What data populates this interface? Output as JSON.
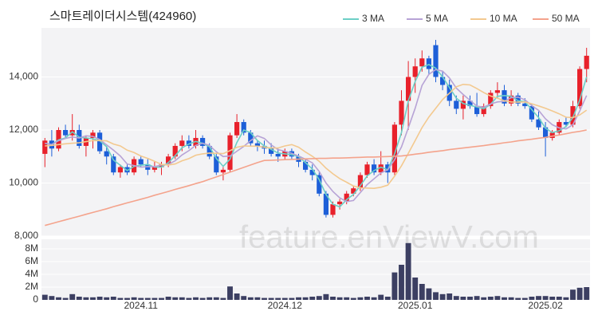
{
  "chart_data": {
    "type": "candlestick",
    "title": "스마트레이더시스템(424960)",
    "watermark": "feature.enViewV.com",
    "categories": [
      null,
      null,
      null,
      null,
      null,
      null,
      null,
      null,
      null,
      null,
      null,
      null,
      null,
      null,
      "2024.11",
      null,
      null,
      null,
      null,
      null,
      null,
      null,
      null,
      null,
      null,
      null,
      null,
      null,
      null,
      null,
      null,
      null,
      null,
      null,
      null,
      "2024.12",
      null,
      null,
      null,
      null,
      null,
      null,
      null,
      null,
      null,
      null,
      null,
      null,
      null,
      null,
      null,
      null,
      null,
      null,
      "2025.01",
      null,
      null,
      null,
      null,
      null,
      null,
      null,
      null,
      null,
      null,
      null,
      null,
      null,
      null,
      null,
      null,
      null,
      null,
      "2025.02",
      null,
      null,
      null,
      null,
      null,
      null
    ],
    "open": [
      11100,
      11600,
      11300,
      12000,
      11800,
      12000,
      11400,
      11700,
      11900,
      11200,
      11000,
      10400,
      10600,
      10400,
      10900,
      10700,
      10500,
      10600,
      10700,
      11000,
      11400,
      11600,
      11400,
      11700,
      11400,
      11000,
      10400,
      10500,
      11800,
      12300,
      11900,
      11500,
      11400,
      11300,
      11100,
      11000,
      11200,
      11000,
      10800,
      10500,
      10300,
      9600,
      8800,
      9200,
      9300,
      9600,
      9800,
      10300,
      10700,
      10400,
      10700,
      10400,
      12200,
      13100,
      14000,
      14400,
      14700,
      15200,
      14000,
      13700,
      13100,
      12800,
      13100,
      12900,
      12600,
      12900,
      13400,
      13500,
      13000,
      13300,
      13000,
      12900,
      12400,
      12100,
      11700,
      11900,
      12300,
      12200,
      12900,
      14300
    ],
    "high": [
      11700,
      12000,
      12100,
      12200,
      12600,
      12200,
      11800,
      12000,
      12000,
      11400,
      11100,
      10700,
      10700,
      11000,
      11000,
      10900,
      10800,
      10800,
      11100,
      11500,
      11800,
      11800,
      12000,
      11800,
      11500,
      11100,
      10600,
      11900,
      12600,
      12400,
      12000,
      11600,
      11600,
      11500,
      11300,
      11300,
      11300,
      11100,
      10900,
      10700,
      10400,
      9700,
      9300,
      9400,
      9700,
      9900,
      10400,
      10800,
      10900,
      11200,
      10800,
      12300,
      13500,
      14600,
      14700,
      15000,
      14800,
      15400,
      14200,
      13900,
      13300,
      13300,
      13300,
      13400,
      13000,
      13500,
      13800,
      13700,
      13500,
      13400,
      13200,
      13000,
      12700,
      12300,
      12000,
      12400,
      12500,
      13100,
      14400,
      15100
    ],
    "low": [
      10600,
      11000,
      11200,
      11700,
      11600,
      11300,
      11000,
      11300,
      11100,
      10700,
      10300,
      10200,
      10300,
      10300,
      10600,
      10300,
      10400,
      10300,
      10600,
      10900,
      11200,
      11300,
      11300,
      11300,
      10900,
      10300,
      10100,
      10400,
      11700,
      11800,
      11400,
      11200,
      11100,
      11000,
      10800,
      10900,
      10900,
      10600,
      10400,
      10100,
      9500,
      8700,
      8700,
      9000,
      9200,
      9500,
      9700,
      10200,
      10300,
      10300,
      10000,
      10300,
      11800,
      12000,
      13400,
      14200,
      14100,
      13800,
      13500,
      12900,
      12600,
      12400,
      12800,
      12500,
      12500,
      12800,
      13200,
      12900,
      12900,
      12900,
      12800,
      12300,
      12000,
      11000,
      11600,
      11800,
      12100,
      12100,
      12800,
      13800
    ],
    "close": [
      11600,
      11300,
      12000,
      11800,
      12000,
      11400,
      11700,
      11900,
      11200,
      11000,
      10400,
      10600,
      10400,
      10900,
      10700,
      10500,
      10600,
      10700,
      11000,
      11400,
      11600,
      11400,
      11700,
      11400,
      11000,
      10400,
      10500,
      11800,
      12300,
      11900,
      11500,
      11400,
      11300,
      11100,
      11000,
      11200,
      11000,
      10800,
      10500,
      10300,
      9600,
      8800,
      9200,
      9300,
      9600,
      9800,
      10300,
      10700,
      10400,
      10700,
      10400,
      12200,
      13100,
      14000,
      14400,
      14700,
      14300,
      14000,
      13700,
      13100,
      12800,
      13100,
      12900,
      12600,
      12900,
      13400,
      13500,
      13000,
      13300,
      13000,
      12900,
      12400,
      12100,
      11700,
      11900,
      12300,
      12200,
      12900,
      14300,
      14800
    ],
    "volume": [
      800000,
      600000,
      400000,
      300000,
      900000,
      500000,
      400000,
      400000,
      500000,
      400000,
      500000,
      300000,
      300000,
      400000,
      300000,
      300000,
      300000,
      300000,
      500000,
      400000,
      400000,
      300000,
      400000,
      300000,
      400000,
      400000,
      300000,
      2100000,
      1000000,
      600000,
      400000,
      400000,
      300000,
      300000,
      300000,
      300000,
      300000,
      400000,
      400000,
      500000,
      600000,
      900000,
      500000,
      400000,
      400000,
      300000,
      400000,
      500000,
      400000,
      800000,
      500000,
      4300000,
      5500000,
      8900000,
      3500000,
      2500000,
      1800000,
      1200000,
      900000,
      1000000,
      600000,
      500000,
      500000,
      600000,
      400000,
      500000,
      600000,
      400000,
      400000,
      300000,
      300000,
      500000,
      600000,
      600000,
      500000,
      500000,
      400000,
      1600000,
      1900000,
      2000000
    ],
    "up_color": "#e8212b",
    "down_color": "#1d5fd8",
    "volume_color": "#3c3f62",
    "series": [
      {
        "name": "3 MA",
        "color": "#6ccfc6",
        "values": [
          11500,
          11450,
          11630,
          11700,
          11930,
          11730,
          11700,
          11670,
          11600,
          11370,
          10870,
          10670,
          10470,
          10630,
          10670,
          10700,
          10600,
          10600,
          10770,
          11030,
          11330,
          11470,
          11570,
          11500,
          11370,
          10930,
          10630,
          10900,
          11530,
          12000,
          11900,
          11600,
          11400,
          11270,
          11130,
          11100,
          11070,
          11000,
          10770,
          10530,
          10130,
          9570,
          9200,
          9100,
          9370,
          9570,
          9900,
          10270,
          10470,
          10600,
          10500,
          11100,
          11900,
          13100,
          13830,
          14370,
          14470,
          14330,
          14000,
          13600,
          13200,
          13000,
          12930,
          12870,
          12800,
          12970,
          13270,
          13300,
          13270,
          13100,
          13070,
          12770,
          12470,
          12070,
          11900,
          11970,
          12130,
          12470,
          13130,
          14000
        ]
      },
      {
        "name": "5 MA",
        "color": "#b7a3d6",
        "values": [
          11500,
          11450,
          11600,
          11680,
          11740,
          11700,
          11780,
          11760,
          11640,
          11440,
          11240,
          11020,
          10720,
          10660,
          10600,
          10620,
          10620,
          10680,
          10700,
          10840,
          11060,
          11220,
          11420,
          11500,
          11420,
          11180,
          11000,
          11020,
          11200,
          11380,
          11600,
          11780,
          11680,
          11440,
          11260,
          11200,
          11120,
          11020,
          10900,
          10760,
          10440,
          10000,
          9680,
          9440,
          9300,
          9340,
          9640,
          9940,
          10160,
          10380,
          10500,
          10880,
          11360,
          12080,
          12820,
          13680,
          14100,
          14280,
          14220,
          13960,
          13580,
          13340,
          13120,
          12900,
          12860,
          12980,
          13060,
          13080,
          13220,
          13240,
          13140,
          12920,
          12740,
          12420,
          12200,
          12080,
          12040,
          12200,
          12720,
          13300
        ]
      },
      {
        "name": "10 MA",
        "color": "#f3c98f",
        "values": [
          11400,
          11420,
          11450,
          11480,
          11500,
          11520,
          11560,
          11600,
          11600,
          11590,
          11470,
          11400,
          11240,
          11150,
          11020,
          10930,
          10820,
          10700,
          10680,
          10720,
          10840,
          10920,
          11050,
          11100,
          11130,
          11120,
          11110,
          11220,
          11350,
          11400,
          11390,
          11390,
          11350,
          11320,
          11320,
          11400,
          11450,
          11350,
          11170,
          11010,
          10820,
          10560,
          10350,
          10170,
          10030,
          9890,
          9820,
          9810,
          9800,
          9840,
          9920,
          10260,
          10650,
          11120,
          11600,
          12090,
          12490,
          12820,
          13150,
          13390,
          13630,
          13720,
          13700,
          13560,
          13410,
          13280,
          13200,
          13100,
          13060,
          13050,
          13060,
          12990,
          12910,
          12820,
          12720,
          12610,
          12480,
          12470,
          12570,
          12750
        ]
      },
      {
        "name": "50 MA",
        "color": "#f4a38c",
        "values": [
          8400,
          8470,
          8540,
          8610,
          8680,
          8750,
          8820,
          8890,
          8960,
          9030,
          9110,
          9180,
          9250,
          9320,
          9390,
          9460,
          9540,
          9610,
          9680,
          9760,
          9830,
          9900,
          9980,
          10050,
          10140,
          10230,
          10320,
          10410,
          10500,
          10590,
          10680,
          10770,
          10850,
          10860,
          10870,
          10880,
          10890,
          10900,
          10910,
          10920,
          10930,
          10930,
          10940,
          10940,
          10950,
          10960,
          10970,
          10980,
          10980,
          10990,
          11000,
          11010,
          11020,
          11050,
          11090,
          11120,
          11160,
          11190,
          11220,
          11260,
          11290,
          11320,
          11350,
          11380,
          11410,
          11450,
          11480,
          11520,
          11550,
          11590,
          11620,
          11650,
          11690,
          11720,
          11770,
          11810,
          11860,
          11910,
          11950,
          12000
        ]
      }
    ],
    "ylim": [
      8000,
      15850
    ],
    "yticks": [
      {
        "value": 8000,
        "label": "8,000"
      },
      {
        "value": 10000,
        "label": "10,000"
      },
      {
        "value": 12000,
        "label": "12,000"
      },
      {
        "value": 14000,
        "label": "14,000"
      }
    ],
    "y2lim": [
      0,
      9500000
    ],
    "y2ticks": [
      0,
      {
        "value": 2000000,
        "label": "2M"
      },
      {
        "value": 4000000,
        "label": "4M"
      },
      {
        "value": 6000000,
        "label": "6M"
      },
      {
        "value": 8000000,
        "label": "8M"
      }
    ],
    "grid": true
  }
}
